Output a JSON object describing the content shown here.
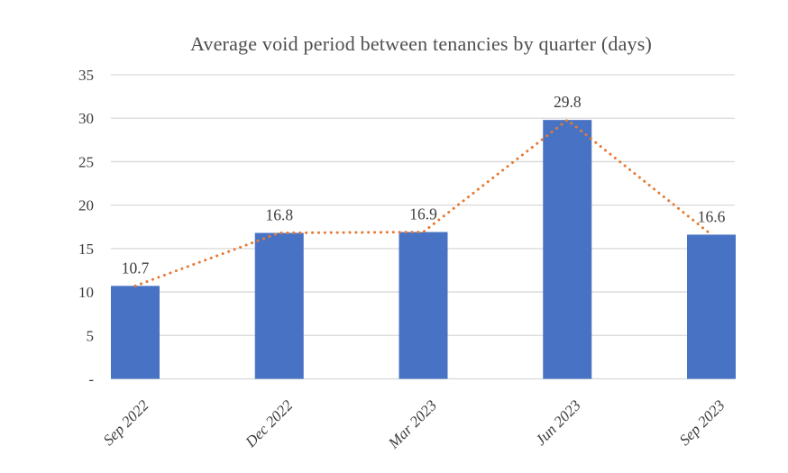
{
  "chart_data": {
    "type": "bar",
    "title": "Average void period between tenancies by quarter (days)",
    "categories": [
      "Sep 2022",
      "Dec 2022",
      "Mar 2023",
      "Jun 2023",
      "Sep 2023"
    ],
    "series": [
      {
        "name": "average-void-period-bars",
        "type": "bar",
        "values": [
          10.7,
          16.8,
          16.9,
          29.8,
          16.6
        ]
      },
      {
        "name": "trend-dotted-line",
        "type": "line",
        "values": [
          10.7,
          16.8,
          16.9,
          29.8,
          16.6
        ]
      }
    ],
    "data_labels": [
      "10.7",
      "16.8",
      "16.9",
      "29.8",
      "16.6"
    ],
    "xlabel": "",
    "ylabel": "",
    "ylim": [
      0,
      35
    ],
    "yticks": [
      {
        "value": 0,
        "label": "-"
      },
      {
        "value": 5,
        "label": "5"
      },
      {
        "value": 10,
        "label": "10"
      },
      {
        "value": 15,
        "label": "15"
      },
      {
        "value": 20,
        "label": "20"
      },
      {
        "value": 25,
        "label": "25"
      },
      {
        "value": 30,
        "label": "30"
      },
      {
        "value": 35,
        "label": "35"
      }
    ],
    "grid": true,
    "legend": false,
    "colors": {
      "bar": "#4873C4",
      "line": "#E57A33",
      "grid": "#D9D9D9",
      "text": "#3D3D3D",
      "title": "#4F4F4F"
    }
  }
}
